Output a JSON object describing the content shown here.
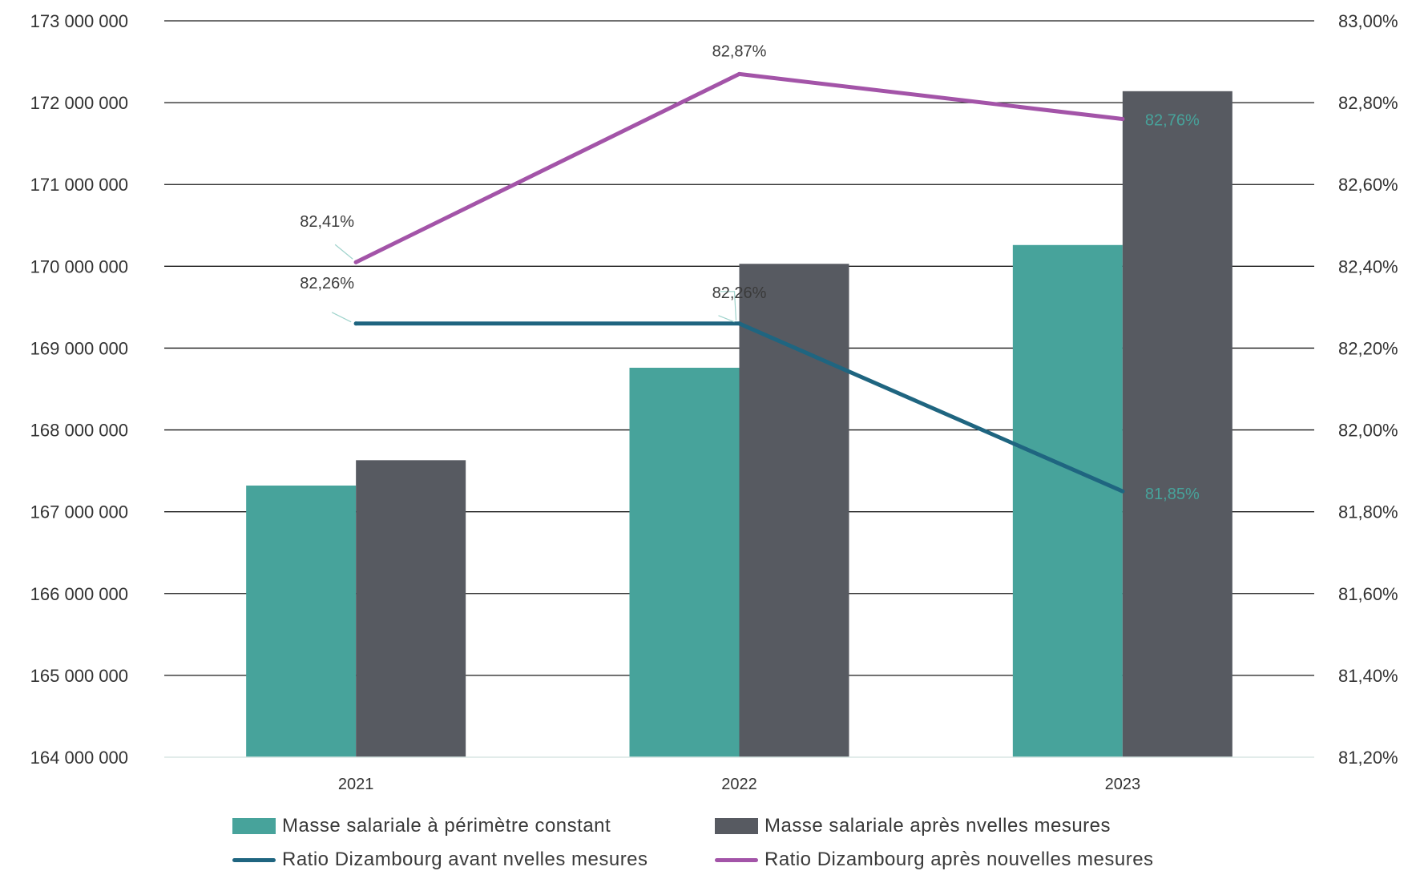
{
  "chart_data": {
    "type": "bar",
    "title": "",
    "categories": [
      "2021",
      "2022",
      "2023"
    ],
    "y_left": {
      "range": [
        164000000,
        173000000
      ],
      "ticks": [
        164000000,
        165000000,
        166000000,
        167000000,
        168000000,
        169000000,
        170000000,
        171000000,
        172000000,
        173000000
      ],
      "tick_labels": [
        "164 000 000",
        "165 000 000",
        "166 000 000",
        "167 000 000",
        "168 000 000",
        "169 000 000",
        "170 000 000",
        "171 000 000",
        "172 000 000",
        "173 000 000"
      ]
    },
    "y_right": {
      "range": [
        81.2,
        83.0
      ],
      "ticks": [
        81.2,
        81.4,
        81.6,
        81.8,
        82.0,
        82.2,
        82.4,
        82.6,
        82.8,
        83.0
      ],
      "tick_labels": [
        "81,20%",
        "81,40%",
        "81,60%",
        "81,80%",
        "82,00%",
        "82,20%",
        "82,40%",
        "82,60%",
        "82,80%",
        "83,00%"
      ]
    },
    "grid": true,
    "legend_position": "bottom",
    "bar_series": [
      {
        "name": "Masse salariale à périmètre constant",
        "color": "#47A39B",
        "values": [
          167320000,
          168760000,
          170260000
        ]
      },
      {
        "name": "Masse salariale après nvelles mesures",
        "color": "#575A61",
        "values": [
          167630000,
          170030000,
          172140000
        ]
      }
    ],
    "line_series": [
      {
        "name": "Ratio Dizambourg avant nvelles mesures",
        "color": "#1F6580",
        "values": [
          82.26,
          82.26,
          81.85
        ],
        "labels": [
          "82,26%",
          "82,26%",
          "81,85%"
        ]
      },
      {
        "name": "Ratio Dizambourg après nouvelles mesures",
        "color": "#A354A8",
        "values": [
          82.41,
          82.87,
          82.76
        ],
        "labels": [
          "82,41%",
          "82,87%",
          "82,76%"
        ]
      }
    ]
  }
}
